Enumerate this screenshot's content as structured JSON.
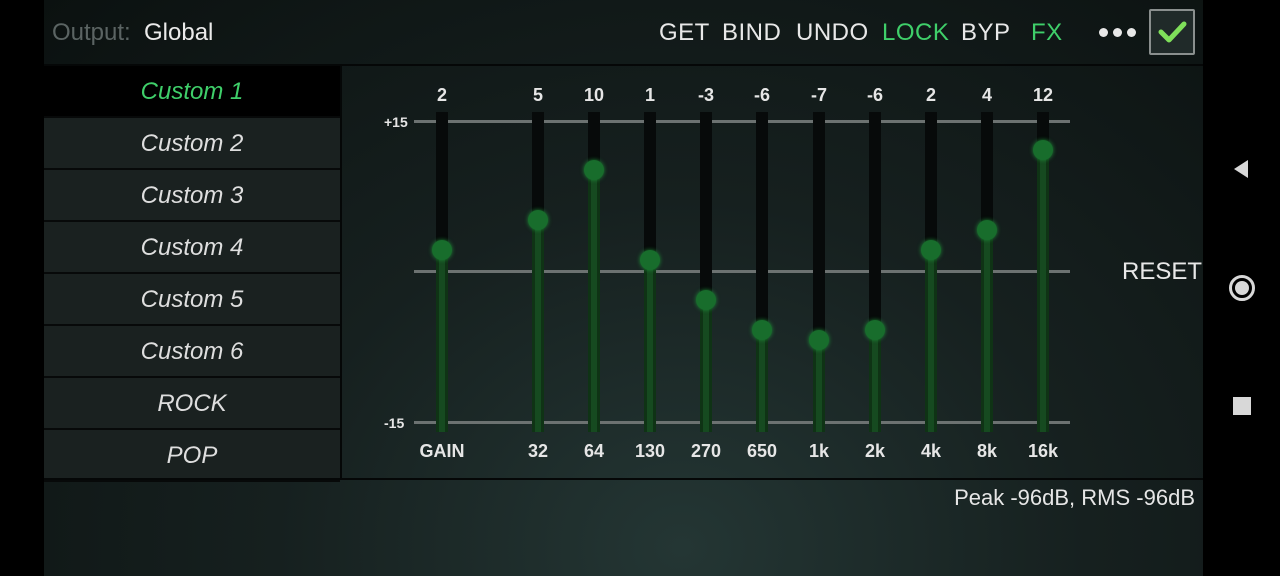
{
  "output": {
    "label": "Output:",
    "value": "Global"
  },
  "toolbar": {
    "get": "GET",
    "bind": "BIND",
    "undo": "UNDO",
    "lock": "LOCK",
    "byp": "BYP",
    "fx": "FX"
  },
  "colors": {
    "accent": "#3fcf6a",
    "slider_fill": "#164a20",
    "knob": "#186d2c"
  },
  "presets": [
    "Custom 1",
    "Custom 2",
    "Custom 3",
    "Custom 4",
    "Custom 5",
    "Custom 6",
    "ROCK",
    "POP"
  ],
  "selected_preset": "Custom 1",
  "eq": {
    "scale_top": "+15",
    "scale_bottom": "-15",
    "range": [
      -15,
      15
    ],
    "bands": [
      {
        "label": "GAIN",
        "value": 2
      },
      {
        "label": "32",
        "value": 5
      },
      {
        "label": "64",
        "value": 10
      },
      {
        "label": "130",
        "value": 1
      },
      {
        "label": "270",
        "value": -3
      },
      {
        "label": "650",
        "value": -6
      },
      {
        "label": "1k",
        "value": -7
      },
      {
        "label": "2k",
        "value": -6
      },
      {
        "label": "4k",
        "value": 2
      },
      {
        "label": "8k",
        "value": 4
      },
      {
        "label": "16k",
        "value": 12
      }
    ],
    "reset_label": "RESET"
  },
  "meter": "Peak -96dB, RMS -96dB",
  "icons": {
    "more": "more-dots-icon",
    "apply": "checkmark-icon",
    "back": "nav-back-icon",
    "home": "nav-home-icon",
    "recents": "nav-recents-icon"
  }
}
